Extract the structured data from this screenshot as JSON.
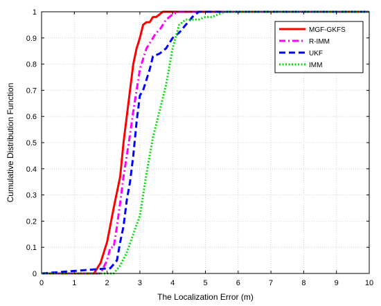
{
  "chart_data": {
    "type": "line",
    "title": "",
    "xlabel": "The Localization Error (m)",
    "ylabel": "Cumulative Distribution Function",
    "xlim": [
      0,
      10
    ],
    "ylim": [
      0,
      1
    ],
    "xticks": [
      "0",
      "1",
      "2",
      "3",
      "4",
      "5",
      "6",
      "7",
      "8",
      "9",
      "10"
    ],
    "yticks": [
      "0",
      "0.1",
      "0.2",
      "0.3",
      "0.4",
      "0.5",
      "0.6",
      "0.7",
      "0.8",
      "0.9",
      "1"
    ],
    "grid": true,
    "legend_position": "top-right",
    "series": [
      {
        "name": "MGF-GKFS",
        "color": "#ff0000",
        "style": "solid",
        "x": [
          0,
          1.6,
          1.8,
          2.0,
          2.2,
          2.4,
          2.5,
          2.6,
          2.7,
          2.8,
          2.9,
          3.0,
          3.1,
          3.2,
          3.3,
          3.4,
          3.5,
          3.6,
          3.7,
          3.8,
          4.0,
          10
        ],
        "y": [
          0,
          0,
          0.04,
          0.12,
          0.25,
          0.37,
          0.5,
          0.6,
          0.7,
          0.8,
          0.86,
          0.9,
          0.95,
          0.96,
          0.96,
          0.98,
          0.98,
          0.99,
          1.0,
          1.0,
          1.0,
          1.0
        ]
      },
      {
        "name": "R-IMM",
        "color": "#ff00ff",
        "style": "dashdot",
        "x": [
          0,
          1.8,
          2.0,
          2.1,
          2.2,
          2.3,
          2.4,
          2.5,
          2.6,
          2.7,
          2.8,
          2.9,
          3.0,
          3.1,
          3.2,
          3.3,
          3.4,
          3.5,
          3.6,
          3.7,
          3.8,
          3.9,
          4.0,
          4.2,
          10
        ],
        "y": [
          0,
          0,
          0.05,
          0.1,
          0.1,
          0.18,
          0.27,
          0.37,
          0.45,
          0.53,
          0.62,
          0.7,
          0.78,
          0.82,
          0.86,
          0.88,
          0.9,
          0.92,
          0.93,
          0.95,
          0.97,
          0.98,
          0.99,
          1.0,
          1.0
        ]
      },
      {
        "name": "UKF",
        "color": "#0000ff",
        "style": "dashed",
        "x": [
          0,
          2.1,
          2.3,
          2.4,
          2.5,
          2.6,
          2.7,
          2.8,
          2.9,
          3.0,
          3.1,
          3.2,
          3.3,
          3.4,
          3.6,
          3.8,
          4.0,
          4.2,
          4.4,
          4.6,
          4.8,
          5.0,
          10
        ],
        "y": [
          0,
          0.02,
          0.05,
          0.12,
          0.18,
          0.28,
          0.35,
          0.45,
          0.58,
          0.68,
          0.7,
          0.74,
          0.78,
          0.83,
          0.84,
          0.86,
          0.9,
          0.92,
          0.95,
          0.98,
          1.0,
          1.0,
          1.0
        ]
      },
      {
        "name": "IMM",
        "color": "#00dd00",
        "style": "dotted",
        "x": [
          0,
          2.2,
          2.4,
          2.6,
          2.8,
          3.0,
          3.2,
          3.4,
          3.6,
          3.8,
          4.0,
          4.2,
          4.4,
          4.6,
          4.8,
          5.0,
          5.2,
          5.4,
          5.6,
          6.0,
          10
        ],
        "y": [
          0,
          0,
          0.03,
          0.08,
          0.15,
          0.22,
          0.38,
          0.52,
          0.62,
          0.72,
          0.86,
          0.95,
          0.97,
          0.97,
          0.97,
          0.98,
          0.98,
          0.99,
          1.0,
          1.0,
          1.0
        ]
      }
    ]
  }
}
